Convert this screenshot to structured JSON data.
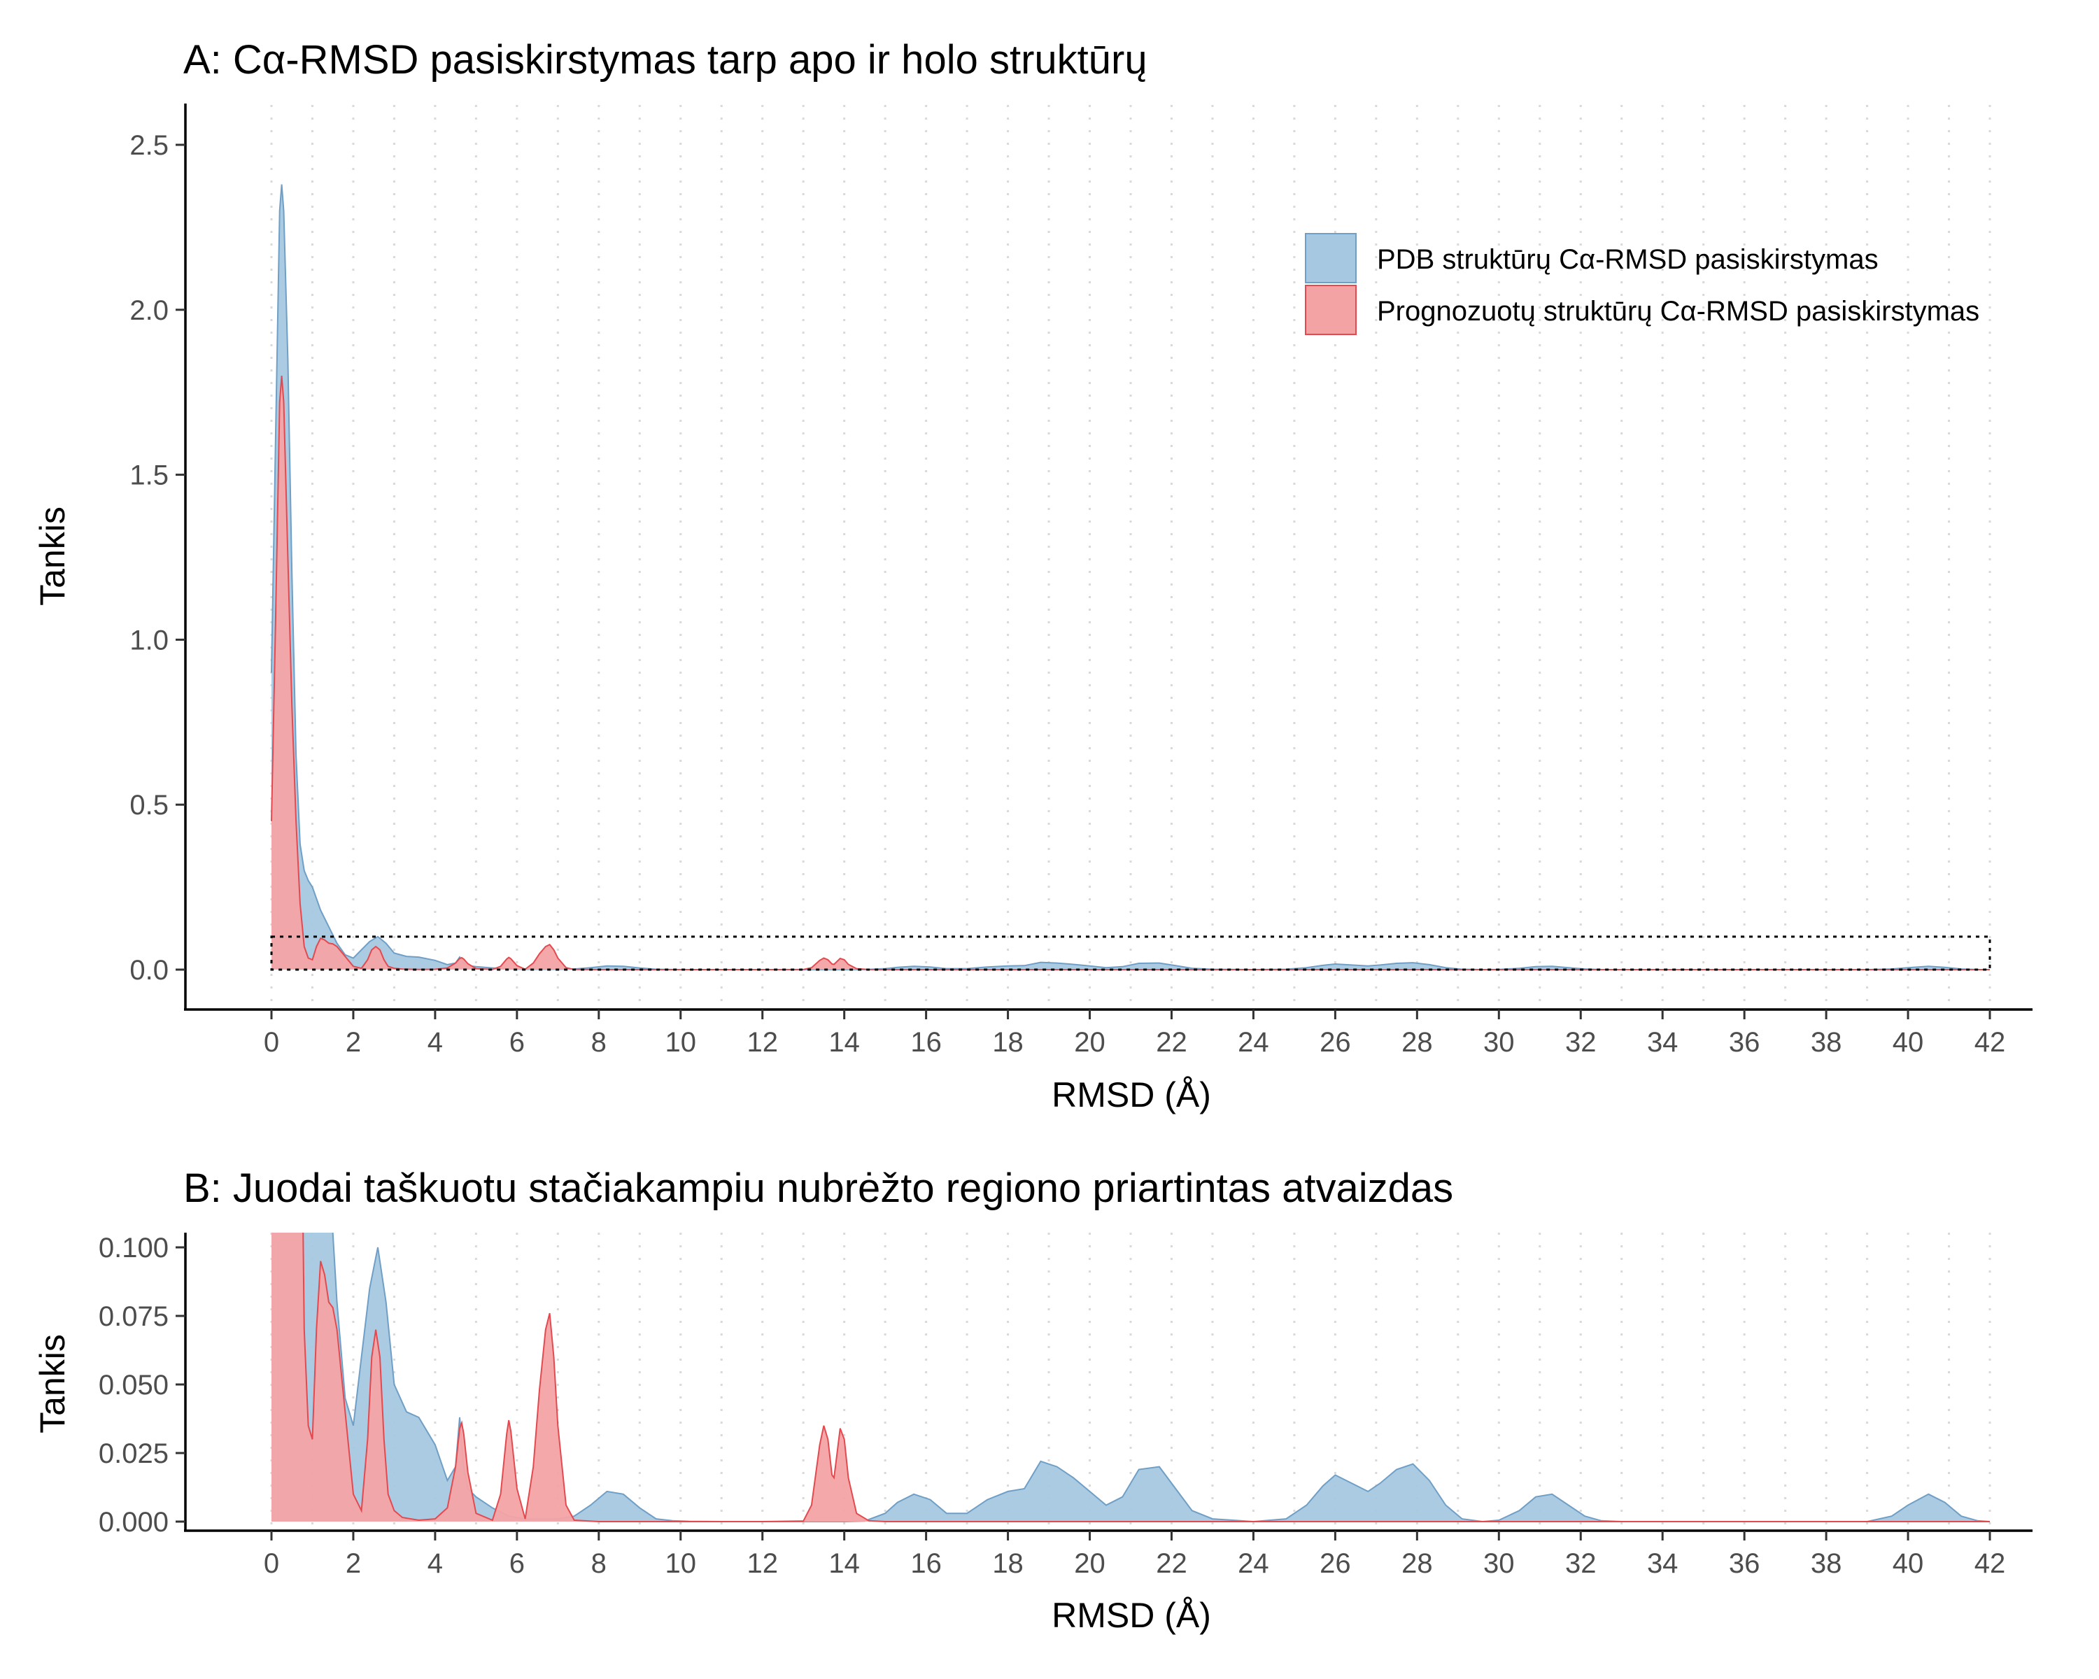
{
  "chart_data": [
    {
      "panel": "A",
      "type": "area",
      "title": "A: Cα-RMSD pasiskirstymas tarp apo ir holo struktūrų",
      "xlabel": "RMSD (Å)",
      "ylabel": "Tankis",
      "xlim": [
        0,
        42
      ],
      "ylim": [
        0,
        2.5
      ],
      "x_ticks": [
        0,
        2,
        4,
        6,
        8,
        10,
        12,
        14,
        16,
        18,
        20,
        22,
        24,
        26,
        28,
        30,
        32,
        34,
        36,
        38,
        40,
        42
      ],
      "y_ticks": [
        0.0,
        0.5,
        1.0,
        1.5,
        2.0,
        2.5
      ],
      "y_tick_labels": [
        "0.0",
        "0.5",
        "1.0",
        "1.5",
        "2.0",
        "2.5"
      ],
      "grid": "vertical dotted",
      "legend": "top-right",
      "zoom_box": {
        "x": [
          0,
          42
        ],
        "y": [
          0,
          0.1
        ]
      },
      "series": [
        {
          "name": "PDB struktūrų Cα-RMSD pasiskirstymas",
          "fill": "#a6c8e0",
          "stroke": "#6f9fc6",
          "x": [
            0,
            0.1,
            0.2,
            0.25,
            0.3,
            0.4,
            0.5,
            0.6,
            0.7,
            0.8,
            0.9,
            1.0,
            1.2,
            1.4,
            1.6,
            1.8,
            2.0,
            2.2,
            2.4,
            2.6,
            2.8,
            3.0,
            3.3,
            3.6,
            4.0,
            4.3,
            4.5,
            4.6,
            4.7,
            4.8,
            5.0,
            5.4,
            5.8,
            6.2,
            6.6,
            7.0,
            7.4,
            7.8,
            8.2,
            8.6,
            9.0,
            9.4,
            9.8,
            10.2,
            11,
            12,
            13,
            14,
            14.5,
            15.0,
            15.3,
            15.7,
            16.1,
            16.5,
            17.0,
            17.5,
            18.0,
            18.4,
            18.8,
            19.2,
            19.6,
            20.0,
            20.4,
            20.8,
            21.2,
            21.7,
            22.1,
            22.5,
            23.0,
            24.0,
            24.8,
            25.3,
            25.7,
            26.0,
            26.4,
            26.8,
            27.1,
            27.5,
            27.9,
            28.3,
            28.7,
            29.1,
            29.6,
            30.0,
            30.5,
            30.9,
            31.3,
            31.7,
            32.1,
            32.5,
            33,
            35,
            37,
            39,
            39.6,
            40.0,
            40.5,
            40.9,
            41.3,
            41.7,
            42.0
          ],
          "y": [
            0.9,
            1.6,
            2.3,
            2.38,
            2.3,
            1.85,
            1.2,
            0.65,
            0.38,
            0.3,
            0.27,
            0.25,
            0.18,
            0.13,
            0.08,
            0.045,
            0.035,
            0.06,
            0.085,
            0.1,
            0.08,
            0.05,
            0.04,
            0.038,
            0.028,
            0.015,
            0.02,
            0.038,
            0.02,
            0.012,
            0.009,
            0.005,
            0.002,
            0.001,
            0.001,
            0.001,
            0.002,
            0.006,
            0.011,
            0.01,
            0.005,
            0.001,
            0.0003,
            0.0001,
            0.0,
            0.0,
            0.0,
            0.0,
            0.0002,
            0.003,
            0.007,
            0.01,
            0.008,
            0.003,
            0.003,
            0.008,
            0.011,
            0.012,
            0.022,
            0.02,
            0.016,
            0.011,
            0.006,
            0.009,
            0.019,
            0.02,
            0.012,
            0.004,
            0.001,
            0.0,
            0.001,
            0.006,
            0.013,
            0.017,
            0.014,
            0.011,
            0.014,
            0.019,
            0.021,
            0.015,
            0.006,
            0.001,
            0.0,
            0.0005,
            0.004,
            0.009,
            0.01,
            0.006,
            0.002,
            0.0003,
            0.0,
            0.0,
            0.0,
            0.0,
            0.002,
            0.006,
            0.01,
            0.007,
            0.002,
            0.0003,
            0.0
          ]
        },
        {
          "name": "Prognozuotų struktūrų Cα-RMSD pasiskirstymas",
          "fill": "#f4a3a5",
          "stroke": "#e34a4f",
          "x": [
            0,
            0.1,
            0.2,
            0.25,
            0.3,
            0.4,
            0.5,
            0.6,
            0.7,
            0.8,
            0.9,
            1.0,
            1.1,
            1.2,
            1.3,
            1.4,
            1.5,
            1.6,
            1.8,
            2.0,
            2.2,
            2.35,
            2.45,
            2.55,
            2.65,
            2.75,
            2.85,
            3.0,
            3.2,
            3.6,
            4.0,
            4.3,
            4.5,
            4.6,
            4.65,
            4.7,
            4.8,
            5.0,
            5.4,
            5.6,
            5.75,
            5.8,
            5.85,
            6.0,
            6.2,
            6.4,
            6.55,
            6.7,
            6.8,
            6.9,
            7.0,
            7.2,
            7.4,
            8,
            10,
            12,
            13.0,
            13.2,
            13.4,
            13.5,
            13.6,
            13.7,
            13.75,
            13.8,
            13.9,
            14.0,
            14.1,
            14.3,
            14.6,
            15,
            20,
            30,
            40,
            42
          ],
          "y": [
            0.45,
            1.05,
            1.72,
            1.8,
            1.72,
            1.25,
            0.8,
            0.45,
            0.2,
            0.07,
            0.035,
            0.03,
            0.07,
            0.095,
            0.09,
            0.08,
            0.078,
            0.07,
            0.04,
            0.01,
            0.004,
            0.03,
            0.06,
            0.07,
            0.06,
            0.03,
            0.01,
            0.004,
            0.0015,
            0.0005,
            0.001,
            0.005,
            0.02,
            0.034,
            0.036,
            0.032,
            0.018,
            0.003,
            0.0005,
            0.01,
            0.032,
            0.037,
            0.033,
            0.012,
            0.001,
            0.02,
            0.048,
            0.07,
            0.076,
            0.06,
            0.035,
            0.006,
            0.0005,
            0.0,
            0.0,
            0.0,
            0.0002,
            0.006,
            0.028,
            0.035,
            0.03,
            0.017,
            0.016,
            0.022,
            0.034,
            0.03,
            0.016,
            0.003,
            0.0003,
            0.0,
            0.0,
            0.0,
            0.0,
            0.0
          ]
        }
      ]
    },
    {
      "panel": "B",
      "type": "area",
      "title": "B: Juodai taškuotu stačiakampiu nubrėžto regiono priartintas atvaizdas",
      "xlabel": "RMSD (Å)",
      "ylabel": "Tankis",
      "xlim": [
        0,
        42
      ],
      "ylim": [
        0,
        0.1
      ],
      "x_ticks": [
        0,
        2,
        4,
        6,
        8,
        10,
        12,
        14,
        16,
        18,
        20,
        22,
        24,
        26,
        28,
        30,
        32,
        34,
        36,
        38,
        40,
        42
      ],
      "y_ticks": [
        0.0,
        0.025,
        0.05,
        0.075,
        0.1
      ],
      "y_tick_labels": [
        "0.000",
        "0.025",
        "0.050",
        "0.075",
        "0.100"
      ],
      "grid": "vertical dotted",
      "legend": "none",
      "series_ref": "same densities as panel A, clipped to y ≤ 0.1"
    }
  ]
}
